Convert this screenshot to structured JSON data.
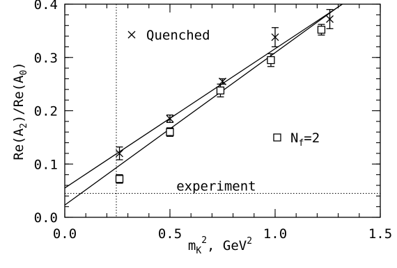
{
  "chart_data": {
    "type": "scatter",
    "xlabel": "m_K^2, GeV^2",
    "ylabel": "Re(A_2)/Re(A_0)",
    "xlim": [
      0,
      1.5
    ],
    "ylim": [
      0,
      0.4
    ],
    "xticks": [
      0.0,
      0.5,
      1.0,
      1.5
    ],
    "xtick_labels": [
      "0.0",
      "0.5",
      "1.0",
      "1.5"
    ],
    "yticks": [
      0.0,
      0.1,
      0.2,
      0.3,
      0.4
    ],
    "ytick_labels": [
      "0.0",
      "0.1",
      "0.2",
      "0.3",
      "0.4"
    ],
    "grid": false,
    "series": [
      {
        "name": "Quenched",
        "marker": "x",
        "legend_label": "Quenched",
        "points": [
          {
            "x": 0.26,
            "y": 0.12,
            "err": 0.012
          },
          {
            "x": 0.5,
            "y": 0.185,
            "err": 0.007
          },
          {
            "x": 0.75,
            "y": 0.255,
            "err": 0.005
          },
          {
            "x": 1.0,
            "y": 0.338,
            "err": 0.018
          },
          {
            "x": 1.26,
            "y": 0.372,
            "err": 0.018
          }
        ],
        "fit_line": {
          "x": [
            0,
            1.5
          ],
          "y": [
            0.055,
            0.447
          ]
        }
      },
      {
        "name": "N_f=2",
        "marker": "square",
        "legend_label_main": "N",
        "legend_label_sub": "f",
        "legend_label_tail": "=2",
        "points": [
          {
            "x": 0.26,
            "y": 0.072,
            "err": 0.008
          },
          {
            "x": 0.5,
            "y": 0.16,
            "err": 0.008
          },
          {
            "x": 0.74,
            "y": 0.238,
            "err": 0.012
          },
          {
            "x": 0.98,
            "y": 0.295,
            "err": 0.012
          },
          {
            "x": 1.22,
            "y": 0.352,
            "err": 0.01
          }
        ],
        "fit_line": {
          "x": [
            0,
            1.5
          ],
          "y": [
            0.023,
            0.452
          ]
        }
      }
    ],
    "reference_lines": [
      {
        "orientation": "vertical",
        "x": 0.245,
        "style": "dotted"
      },
      {
        "orientation": "horizontal",
        "y": 0.045,
        "style": "dotted",
        "label": "experiment"
      }
    ],
    "axis_label_parts": {
      "x_main": "m",
      "x_sub": "K",
      "x_sup": "2",
      "x_tail": ", GeV",
      "x_tail_sup": "2",
      "y_pre": "Re(A",
      "y_sub1": "2",
      "y_mid": ")/Re(A",
      "y_sub2": "0",
      "y_post": ")"
    }
  }
}
